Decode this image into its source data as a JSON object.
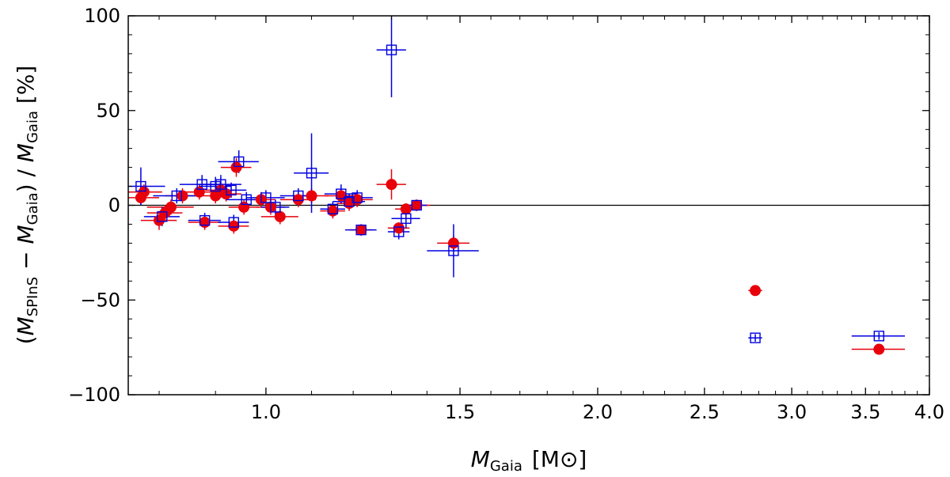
{
  "chart_data": {
    "type": "scatter",
    "xscale": "log",
    "xlim": [
      0.75,
      4.0
    ],
    "ylim": [
      -100,
      100
    ],
    "xticks_major": [
      1.0,
      1.5,
      2.0,
      2.5,
      3.0,
      3.5,
      4.0
    ],
    "xtick_labels": [
      "1.0",
      "1.5",
      "2.0",
      "2.5",
      "3.0",
      "3.5",
      "4.0"
    ],
    "yticks": [
      -100,
      -50,
      0,
      50,
      100
    ],
    "ytick_labels": [
      "−100",
      "−50",
      "0",
      "50",
      "100"
    ],
    "xlabel": {
      "main": "M",
      "sub": "Gaia",
      "unit": "[M⊙]"
    },
    "ylabel": {
      "text": "(M_SPInS − M_Gaia) / M_Gaia  [%]",
      "parts": [
        "(",
        "M",
        "SPInS",
        " − ",
        "M",
        "Gaia",
        ") / ",
        "M",
        "Gaia",
        "  [%]"
      ]
    },
    "reference_line": 0,
    "colors": {
      "red": "#e8000b",
      "blue": "#0000e0"
    },
    "series": [
      {
        "marker": "filled-circle",
        "color": "red",
        "points": [
          {
            "x": 0.77,
            "y": 4,
            "xerr": 0.03,
            "yerr": 4
          },
          {
            "x": 0.775,
            "y": 7,
            "xerr": 0.03,
            "yerr": 4
          },
          {
            "x": 0.8,
            "y": -8,
            "xerr": 0.03,
            "yerr": 5
          },
          {
            "x": 0.81,
            "y": -4,
            "xerr": 0.03,
            "yerr": 4
          },
          {
            "x": 0.82,
            "y": -1,
            "xerr": 0.04,
            "yerr": 4
          },
          {
            "x": 0.84,
            "y": 5,
            "xerr": 0.03,
            "yerr": 4
          },
          {
            "x": 0.87,
            "y": 7,
            "xerr": 0.03,
            "yerr": 4
          },
          {
            "x": 0.88,
            "y": -9,
            "xerr": 0.03,
            "yerr": 4
          },
          {
            "x": 0.9,
            "y": 5,
            "xerr": 0.03,
            "yerr": 4
          },
          {
            "x": 0.91,
            "y": 8,
            "xerr": 0.03,
            "yerr": 4
          },
          {
            "x": 0.92,
            "y": 6,
            "xerr": 0.03,
            "yerr": 4
          },
          {
            "x": 0.935,
            "y": -11,
            "xerr": 0.03,
            "yerr": 4
          },
          {
            "x": 0.94,
            "y": 20,
            "xerr": 0.03,
            "yerr": 5
          },
          {
            "x": 0.955,
            "y": -1,
            "xerr": 0.03,
            "yerr": 4
          },
          {
            "x": 0.99,
            "y": 3,
            "xerr": 0.03,
            "yerr": 4
          },
          {
            "x": 1.01,
            "y": -1,
            "xerr": 0.03,
            "yerr": 4
          },
          {
            "x": 1.03,
            "y": -6,
            "xerr": 0.04,
            "yerr": 4
          },
          {
            "x": 1.07,
            "y": 3,
            "xerr": 0.04,
            "yerr": 4
          },
          {
            "x": 1.1,
            "y": 5,
            "xerr": 0.04,
            "yerr": 4
          },
          {
            "x": 1.15,
            "y": -3,
            "xerr": 0.03,
            "yerr": 4
          },
          {
            "x": 1.17,
            "y": 5,
            "xerr": 0.04,
            "yerr": 4
          },
          {
            "x": 1.19,
            "y": 1,
            "xerr": 0.03,
            "yerr": 4
          },
          {
            "x": 1.21,
            "y": 3,
            "xerr": 0.04,
            "yerr": 4
          },
          {
            "x": 1.22,
            "y": -13,
            "xerr": 0.03,
            "yerr": 3
          },
          {
            "x": 1.3,
            "y": 11,
            "xerr": 0.04,
            "yerr": 8
          },
          {
            "x": 1.32,
            "y": -12,
            "xerr": 0.03,
            "yerr": 3
          },
          {
            "x": 1.34,
            "y": -2,
            "xerr": 0.03,
            "yerr": 3
          },
          {
            "x": 1.37,
            "y": 0,
            "xerr": 0.04,
            "yerr": 3
          },
          {
            "x": 1.48,
            "y": -20,
            "xerr": 0.05,
            "yerr": 4
          },
          {
            "x": 2.78,
            "y": -45,
            "xerr": 0.04,
            "yerr": 2
          },
          {
            "x": 3.6,
            "y": -76,
            "xerr": 0.2,
            "yerr": 2
          }
        ]
      },
      {
        "marker": "open-square",
        "color": "blue",
        "points": [
          {
            "x": 0.77,
            "y": 10,
            "xerr": 0.04,
            "yerr": 10
          },
          {
            "x": 0.805,
            "y": -6,
            "xerr": 0.03,
            "yerr": 5
          },
          {
            "x": 0.83,
            "y": 5,
            "xerr": 0.04,
            "yerr": 4
          },
          {
            "x": 0.875,
            "y": 11,
            "xerr": 0.04,
            "yerr": 5
          },
          {
            "x": 0.88,
            "y": -8,
            "xerr": 0.03,
            "yerr": 4
          },
          {
            "x": 0.9,
            "y": 10,
            "xerr": 0.03,
            "yerr": 5
          },
          {
            "x": 0.91,
            "y": 11,
            "xerr": 0.04,
            "yerr": 5
          },
          {
            "x": 0.93,
            "y": 8,
            "xerr": 0.03,
            "yerr": 4
          },
          {
            "x": 0.935,
            "y": -9,
            "xerr": 0.03,
            "yerr": 4
          },
          {
            "x": 0.945,
            "y": 23,
            "xerr": 0.04,
            "yerr": 6
          },
          {
            "x": 0.96,
            "y": 3,
            "xerr": 0.04,
            "yerr": 4
          },
          {
            "x": 1.0,
            "y": 4,
            "xerr": 0.04,
            "yerr": 4
          },
          {
            "x": 1.02,
            "y": -1,
            "xerr": 0.03,
            "yerr": 4
          },
          {
            "x": 1.07,
            "y": 5,
            "xerr": 0.04,
            "yerr": 4
          },
          {
            "x": 1.1,
            "y": 17,
            "xerr": 0.04,
            "yerr": 21
          },
          {
            "x": 1.15,
            "y": -2,
            "xerr": 0.03,
            "yerr": 4
          },
          {
            "x": 1.17,
            "y": 6,
            "xerr": 0.04,
            "yerr": 5
          },
          {
            "x": 1.19,
            "y": 2,
            "xerr": 0.04,
            "yerr": 4
          },
          {
            "x": 1.21,
            "y": 4,
            "xerr": 0.04,
            "yerr": 4
          },
          {
            "x": 1.22,
            "y": -13,
            "xerr": 0.04,
            "yerr": 3
          },
          {
            "x": 1.3,
            "y": 82,
            "xerr": 0.04,
            "yerr": 25
          },
          {
            "x": 1.32,
            "y": -14,
            "xerr": 0.03,
            "yerr": 4
          },
          {
            "x": 1.34,
            "y": -7,
            "xerr": 0.04,
            "yerr": 5
          },
          {
            "x": 1.37,
            "y": 0,
            "xerr": 0.03,
            "yerr": 3
          },
          {
            "x": 1.48,
            "y": -24,
            "xerr": 0.08,
            "yerr": 14
          },
          {
            "x": 2.78,
            "y": -70,
            "xerr": 0.04,
            "yerr": 2
          },
          {
            "x": 3.6,
            "y": -69,
            "xerr": 0.2,
            "yerr": 2
          }
        ]
      }
    ]
  }
}
